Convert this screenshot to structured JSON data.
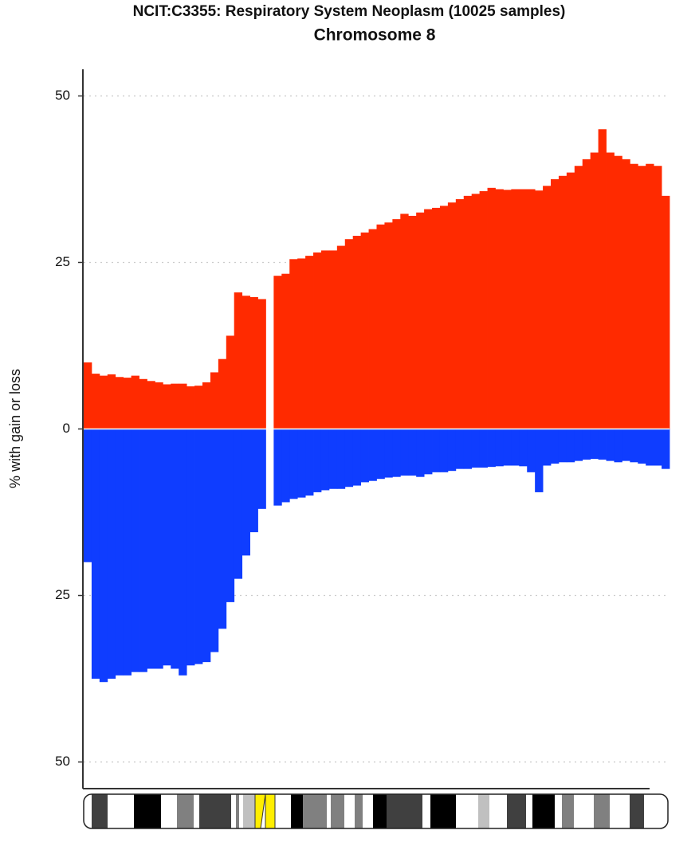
{
  "chart_data": {
    "type": "gain-loss",
    "title": "NCIT:C3355: Respiratory System Neoplasm (10025 samples)",
    "subtitle": "Chromosome 8",
    "y_label": "% with gain or loss",
    "categories": [
      null,
      null,
      null,
      null,
      null,
      null,
      null,
      null,
      null,
      null,
      null,
      null,
      null,
      null,
      null,
      null,
      null,
      null,
      null,
      null,
      null,
      null,
      null,
      null,
      null,
      null,
      null,
      null,
      null,
      null,
      null,
      null,
      null,
      null,
      null,
      null,
      null,
      null,
      null,
      null,
      null,
      null,
      null,
      null,
      null,
      null,
      null,
      null,
      null,
      null,
      null,
      null,
      null,
      null,
      null,
      null,
      null,
      null,
      null,
      null,
      null,
      null,
      null,
      null,
      null,
      null,
      null,
      null,
      null,
      null,
      null,
      null,
      null,
      null
    ],
    "series": [
      {
        "name": "gain",
        "color": "#ff2a00",
        "values": [
          10,
          8.3,
          8,
          8.2,
          7.8,
          7.7,
          8,
          7.5,
          7.2,
          7,
          6.7,
          6.8,
          6.8,
          6.4,
          6.5,
          7,
          8.5,
          10.5,
          14,
          20.5,
          20,
          19.8,
          19.5,
          null,
          23,
          23.3,
          25.5,
          25.6,
          26,
          26.5,
          26.8,
          26.8,
          27.5,
          28.5,
          29,
          29.5,
          30,
          30.7,
          31,
          31.5,
          32.3,
          32,
          32.5,
          33,
          33.2,
          33.5,
          34,
          34.5,
          35,
          35.3,
          35.7,
          36.2,
          36,
          35.9,
          36,
          36,
          36,
          35.8,
          36.5,
          37.5,
          38,
          38.5,
          39.5,
          40.5,
          41.5,
          45,
          41.5,
          41,
          40.5,
          39.8,
          39.5,
          39.8,
          39.5,
          35
        ]
      },
      {
        "name": "loss",
        "color": "#0f3dff",
        "values": [
          -20,
          -37.5,
          -38,
          -37.5,
          -37,
          -37,
          -36.5,
          -36.5,
          -36,
          -36,
          -35.5,
          -36,
          -37,
          -35.5,
          -35.3,
          -35,
          -33.5,
          -30,
          -26,
          -22.5,
          -19,
          -15.5,
          -12,
          null,
          -11.5,
          -11,
          -10.5,
          -10.3,
          -10,
          -9.5,
          -9.2,
          -9,
          -9,
          -8.7,
          -8.5,
          -8,
          -7.8,
          -7.5,
          -7.3,
          -7.2,
          -7,
          -7,
          -7.2,
          -6.8,
          -6.5,
          -6.5,
          -6.3,
          -6,
          -6,
          -5.8,
          -5.8,
          -5.7,
          -5.6,
          -5.5,
          -5.5,
          -5.6,
          -6.5,
          -9.5,
          -5.5,
          -5.2,
          -5,
          -5,
          -4.8,
          -4.6,
          -4.5,
          -4.6,
          -4.8,
          -5,
          -4.8,
          -5,
          -5.2,
          -5.5,
          -5.5,
          -6
        ]
      }
    ],
    "ylim": [
      -54,
      54
    ],
    "yticks": [
      50,
      25,
      0,
      {
        "value": -25,
        "label": "25"
      },
      {
        "value": -50,
        "label": "50"
      }
    ],
    "grid": true
  }
}
